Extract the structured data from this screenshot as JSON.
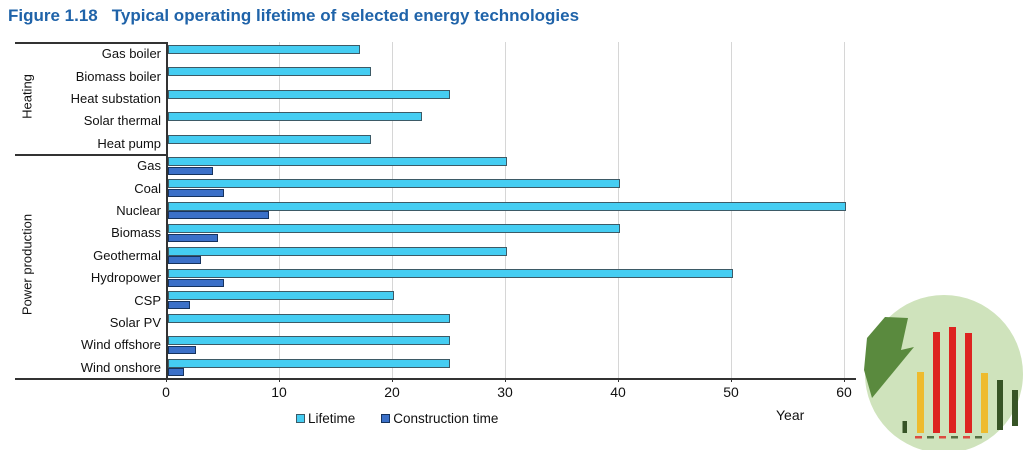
{
  "figure": {
    "label": "Figure 1.18",
    "title": "Typical operating lifetime of selected energy technologies"
  },
  "chart_data": {
    "type": "bar",
    "orientation": "horizontal",
    "title": "Typical operating lifetime of selected energy technologies",
    "xlabel": "Year",
    "xlim": [
      0,
      60
    ],
    "xticks": [
      0,
      10,
      20,
      30,
      40,
      50,
      60
    ],
    "grid": "vertical",
    "legend_position": "bottom",
    "groups": [
      {
        "label": "Heating",
        "count": 5
      },
      {
        "label": "Power production",
        "count": 10
      }
    ],
    "categories": [
      "Gas boiler",
      "Biomass boiler",
      "Heat substation",
      "Solar thermal",
      "Heat pump",
      "Gas",
      "Coal",
      "Nuclear",
      "Biomass",
      "Geothermal",
      "Hydropower",
      "CSP",
      "Solar PV",
      "Wind offshore",
      "Wind onshore"
    ],
    "series": [
      {
        "name": "Lifetime",
        "color": "#45cdf2",
        "border": "#3d5a66",
        "values": [
          17,
          18,
          25,
          22.5,
          18,
          30,
          40,
          60,
          40,
          30,
          50,
          20,
          25,
          25,
          25
        ]
      },
      {
        "name": "Construction time",
        "color": "#3b70c8",
        "border": "#16335e",
        "values": [
          null,
          null,
          null,
          null,
          null,
          4,
          5,
          9,
          4.5,
          3,
          5,
          2,
          0,
          2.5,
          1.5
        ]
      }
    ]
  },
  "legend": [
    {
      "label": "Lifetime",
      "color": "#45cdf2",
      "border": "#3d5a66"
    },
    {
      "label": "Construction time",
      "color": "#3b70c8",
      "border": "#16335e"
    }
  ],
  "xaxis": {
    "label": "Year"
  },
  "title_color": "#1f63a9",
  "logo": {
    "name": "energy-bars-circle-logo",
    "circle_color": "#cfe3bc",
    "arrow_color": "#5a8a3e",
    "red": "#dd2420",
    "yellow": "#eebb2e",
    "dark_green": "#375426"
  }
}
